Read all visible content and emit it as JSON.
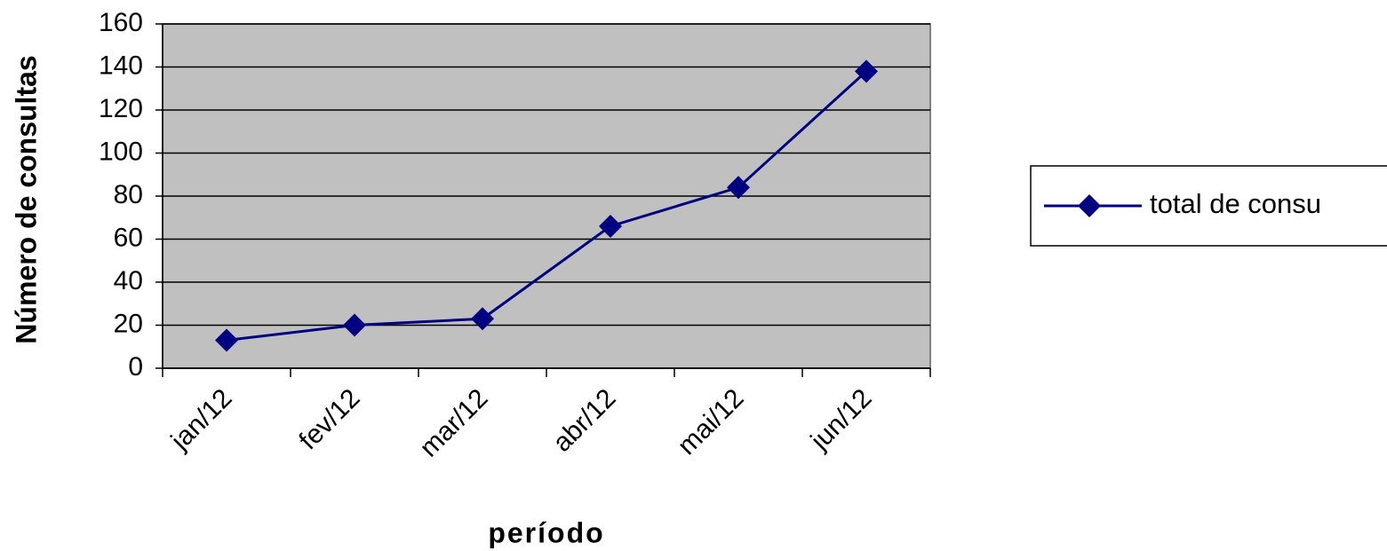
{
  "chart_data": {
    "type": "line",
    "x_label": "período",
    "y_label": "Número de consultas",
    "categories": [
      "jan/12",
      "fev/12",
      "mar/12",
      "abr/12",
      "mai/12",
      "jun/12"
    ],
    "series": [
      {
        "name": "total de consu",
        "color": "#000080",
        "values": [
          13,
          20,
          23,
          66,
          84,
          138
        ]
      }
    ],
    "ylim": [
      0,
      160
    ],
    "yticks": [
      0,
      20,
      40,
      60,
      80,
      100,
      120,
      140,
      160
    ],
    "grid": true
  }
}
